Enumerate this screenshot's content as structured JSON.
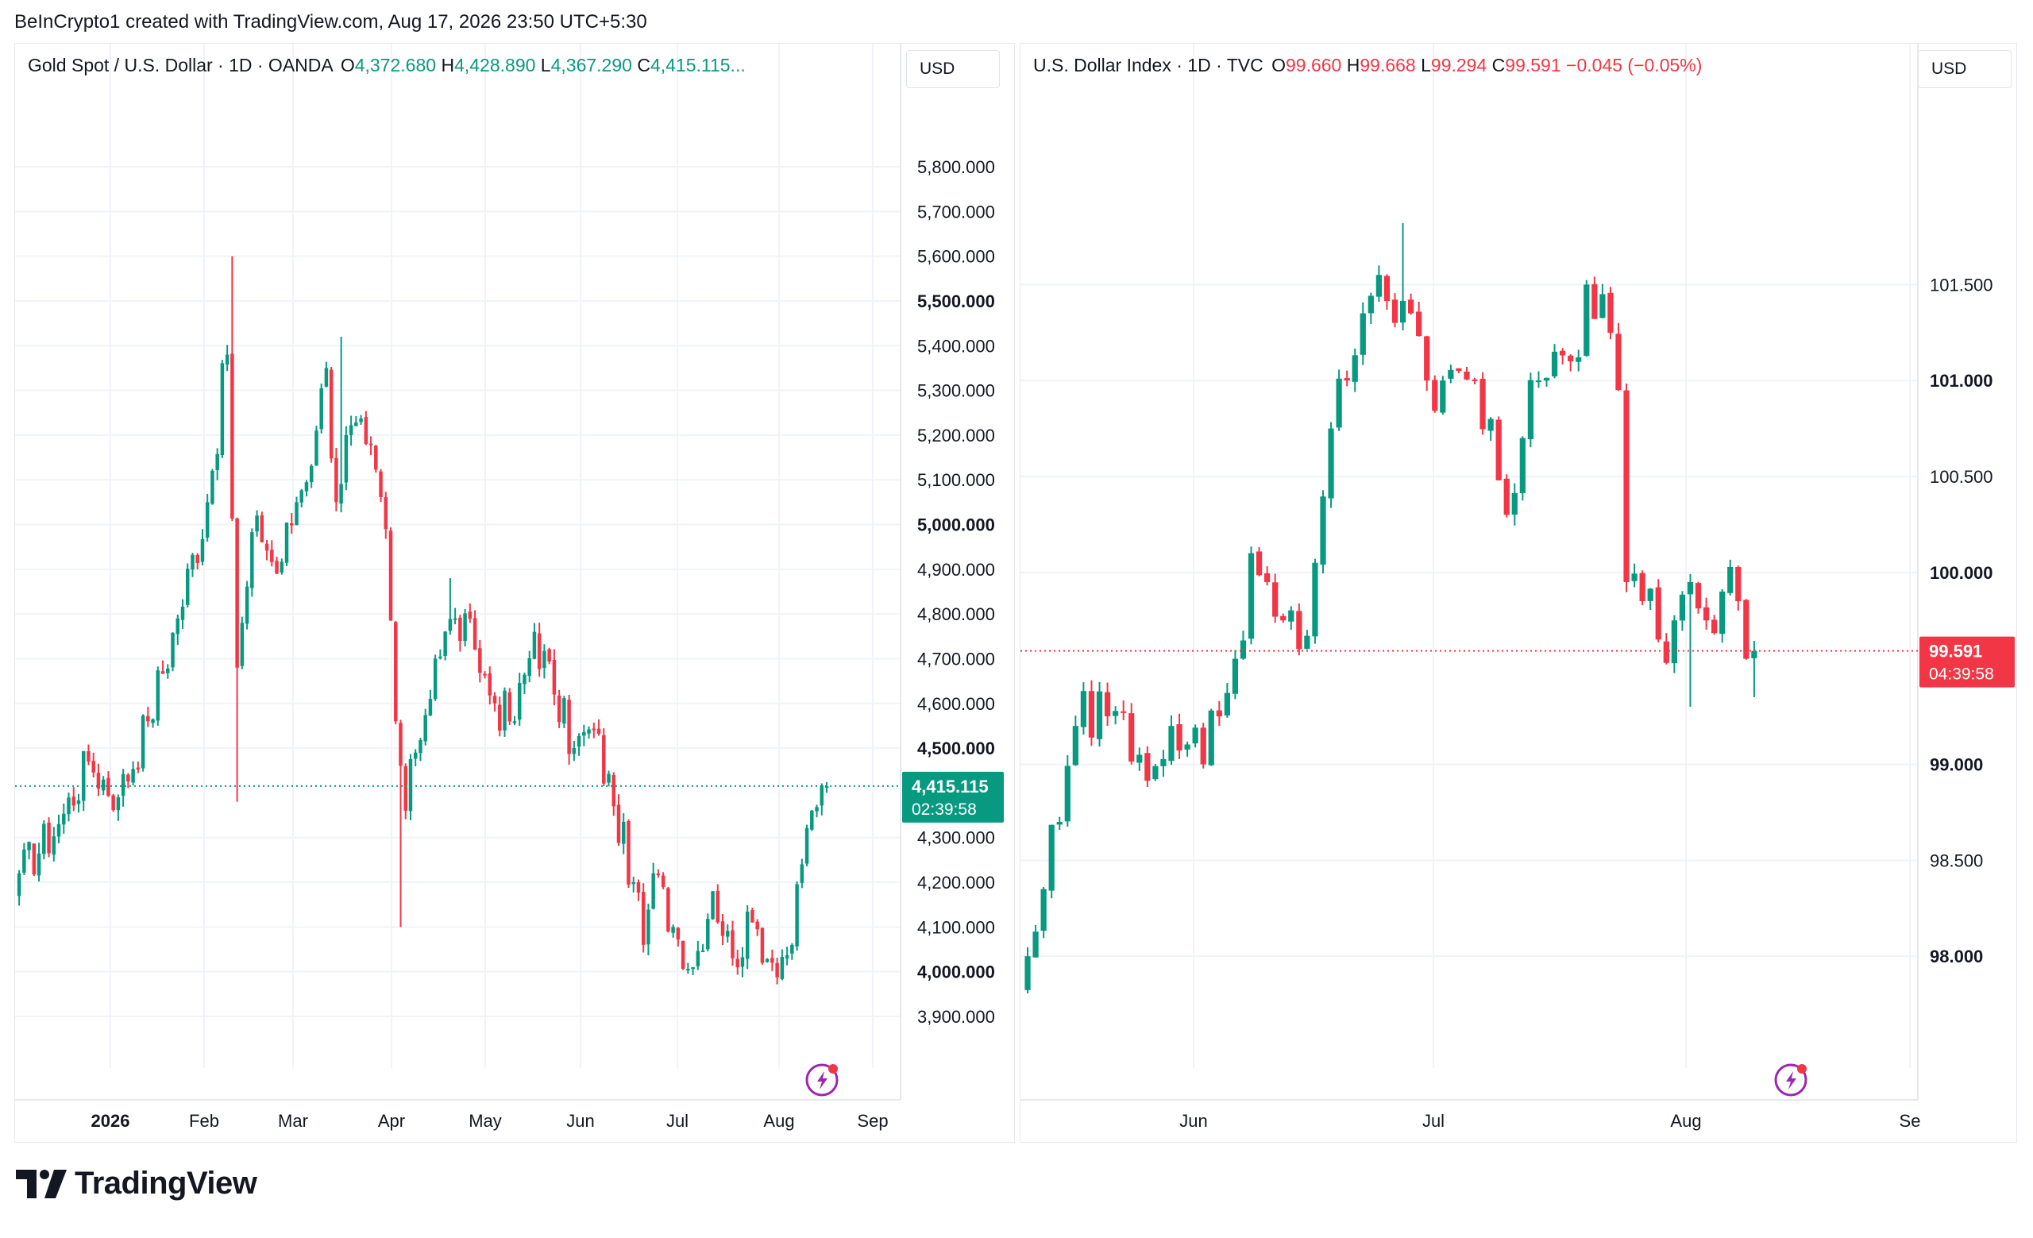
{
  "header": {
    "credit": "BeInCrypto1 created with TradingView.com, Aug 17, 2026 23:50 UTC+5:30"
  },
  "footer": {
    "brand": "TradingView",
    "brand_icon": "tradingview-logo-icon"
  },
  "colors": {
    "up": "#089981",
    "down": "#f23645",
    "grid": "#f0f3fa",
    "text": "#131722"
  },
  "left": {
    "symbol": "Gold Spot / U.S. Dollar · 1D · OANDA",
    "o_label": "O",
    "o": "4,372.680",
    "h_label": "H",
    "h": "4,428.890",
    "l_label": "L",
    "l": "4,367.290",
    "c_label": "C",
    "c": "4,415.115...",
    "currency": "USD",
    "price_tag": "4,415.115",
    "countdown": "02:39:58",
    "quick_icon": "lightning-icon"
  },
  "right": {
    "symbol": "U.S. Dollar Index · 1D · TVC",
    "o_label": "O",
    "o": "99.660",
    "h_label": "H",
    "h": "99.668",
    "l_label": "L",
    "l": "99.294",
    "c_label": "C",
    "c": "99.591",
    "change": "−0.045 (−0.05%)",
    "currency": "USD",
    "price_tag": "99.591",
    "countdown": "04:39:58",
    "quick_icon": "lightning-icon"
  },
  "chart_data": [
    {
      "type": "candlestick",
      "title": "Gold Spot / U.S. Dollar · 1D · OANDA",
      "ylim": [
        3820,
        5880
      ],
      "ticks": [
        {
          "v": 5800,
          "t": "5,800.000",
          "bold": false
        },
        {
          "v": 5700,
          "t": "5,700.000",
          "bold": false
        },
        {
          "v": 5600,
          "t": "5,600.000",
          "bold": false
        },
        {
          "v": 5500,
          "t": "5,500.000",
          "bold": true
        },
        {
          "v": 5400,
          "t": "5,400.000",
          "bold": false
        },
        {
          "v": 5300,
          "t": "5,300.000",
          "bold": false
        },
        {
          "v": 5200,
          "t": "5,200.000",
          "bold": false
        },
        {
          "v": 5100,
          "t": "5,100.000",
          "bold": false
        },
        {
          "v": 5000,
          "t": "5,000.000",
          "bold": true
        },
        {
          "v": 4900,
          "t": "4,900.000",
          "bold": false
        },
        {
          "v": 4800,
          "t": "4,800.000",
          "bold": false
        },
        {
          "v": 4700,
          "t": "4,700.000",
          "bold": false
        },
        {
          "v": 4600,
          "t": "4,600.000",
          "bold": false
        },
        {
          "v": 4500,
          "t": "4,500.000",
          "bold": true
        },
        {
          "v": 4300,
          "t": "4,300.000",
          "bold": false
        },
        {
          "v": 4200,
          "t": "4,200.000",
          "bold": false
        },
        {
          "v": 4100,
          "t": "4,100.000",
          "bold": false
        },
        {
          "v": 4000,
          "t": "4,000.000",
          "bold": true
        },
        {
          "v": 3900,
          "t": "3,900.000",
          "bold": false
        }
      ],
      "xticks": [
        {
          "i": 0,
          "t": "2026",
          "bold": true
        },
        {
          "i": 0,
          "t": "Feb",
          "bold": false
        },
        {
          "i": 0,
          "t": "Mar",
          "bold": false
        },
        {
          "i": 0,
          "t": "Apr",
          "bold": false
        },
        {
          "i": 0,
          "t": "May",
          "bold": false
        },
        {
          "i": 0,
          "t": "Jun",
          "bold": false
        },
        {
          "i": 0,
          "t": "Jul",
          "bold": false
        },
        {
          "i": 0,
          "t": "Aug",
          "bold": false
        },
        {
          "i": 0,
          "t": "Sep",
          "bold": false
        }
      ],
      "last": 4415.115,
      "waypoints": [
        [
          0,
          4220
        ],
        [
          8,
          4330
        ],
        [
          14,
          4470
        ],
        [
          20,
          4390
        ],
        [
          26,
          4560
        ],
        [
          32,
          4790
        ],
        [
          38,
          5050
        ],
        [
          42,
          5380
        ],
        [
          44,
          4680
        ],
        [
          48,
          5020
        ],
        [
          52,
          4890
        ],
        [
          56,
          5050
        ],
        [
          60,
          5210
        ],
        [
          62,
          5350
        ],
        [
          64,
          5050
        ],
        [
          66,
          5200
        ],
        [
          70,
          5180
        ],
        [
          74,
          4990
        ],
        [
          76,
          4560
        ],
        [
          78,
          4360
        ],
        [
          80,
          4490
        ],
        [
          84,
          4700
        ],
        [
          88,
          4790
        ],
        [
          92,
          4720
        ],
        [
          96,
          4600
        ],
        [
          100,
          4560
        ],
        [
          104,
          4760
        ],
        [
          108,
          4620
        ],
        [
          112,
          4500
        ],
        [
          116,
          4540
        ],
        [
          120,
          4370
        ],
        [
          124,
          4200
        ],
        [
          126,
          4060
        ],
        [
          128,
          4220
        ],
        [
          132,
          4100
        ],
        [
          136,
          4010
        ],
        [
          140,
          4180
        ],
        [
          144,
          4030
        ],
        [
          148,
          4110
        ],
        [
          152,
          4020
        ],
        [
          156,
          4060
        ],
        [
          158,
          4240
        ],
        [
          160,
          4360
        ],
        [
          163,
          4415.115
        ]
      ],
      "spikes": [
        {
          "i": 43,
          "hi": 5600
        },
        {
          "i": 44,
          "lo": 4380
        },
        {
          "i": 65,
          "hi": 5420
        },
        {
          "i": 77,
          "lo": 4100
        },
        {
          "i": 87,
          "hi": 4880
        }
      ]
    },
    {
      "type": "candlestick",
      "title": "U.S. Dollar Index · 1D · TVC",
      "ylim": [
        97.5,
        102.3
      ],
      "ticks": [
        {
          "v": 101.5,
          "t": "101.500",
          "bold": false
        },
        {
          "v": 101.0,
          "t": "101.000",
          "bold": true
        },
        {
          "v": 100.5,
          "t": "100.500",
          "bold": false
        },
        {
          "v": 100.0,
          "t": "100.000",
          "bold": true
        },
        {
          "v": 99.0,
          "t": "99.000",
          "bold": true
        },
        {
          "v": 98.5,
          "t": "98.500",
          "bold": false
        },
        {
          "v": 98.0,
          "t": "98.000",
          "bold": true
        }
      ],
      "xticks": [
        {
          "i": 0,
          "t": "Jun",
          "bold": false
        },
        {
          "i": 0,
          "t": "Jul",
          "bold": false
        },
        {
          "i": 0,
          "t": "Aug",
          "bold": false
        },
        {
          "i": 0,
          "t": "Se",
          "bold": false
        }
      ],
      "last": 99.591,
      "waypoints": [
        [
          0,
          98.0
        ],
        [
          2,
          98.35
        ],
        [
          4,
          98.7
        ],
        [
          6,
          99.2
        ],
        [
          10,
          99.25
        ],
        [
          14,
          99.05
        ],
        [
          18,
          99.2
        ],
        [
          22,
          99.0
        ],
        [
          24,
          99.25
        ],
        [
          26,
          99.55
        ],
        [
          28,
          100.1
        ],
        [
          30,
          99.95
        ],
        [
          32,
          99.75
        ],
        [
          34,
          99.6
        ],
        [
          36,
          100.05
        ],
        [
          38,
          100.75
        ],
        [
          40,
          101.0
        ],
        [
          42,
          101.35
        ],
        [
          44,
          101.55
        ],
        [
          46,
          101.3
        ],
        [
          48,
          101.35
        ],
        [
          50,
          101.0
        ],
        [
          52,
          101.0
        ],
        [
          54,
          101.05
        ],
        [
          56,
          101.0
        ],
        [
          58,
          100.8
        ],
        [
          60,
          100.3
        ],
        [
          62,
          100.7
        ],
        [
          64,
          101.0
        ],
        [
          66,
          101.15
        ],
        [
          68,
          101.1
        ],
        [
          70,
          101.5
        ],
        [
          72,
          101.45
        ],
        [
          74,
          100.95
        ],
        [
          75,
          99.95
        ],
        [
          77,
          99.85
        ],
        [
          79,
          99.65
        ],
        [
          81,
          99.75
        ],
        [
          83,
          99.95
        ],
        [
          85,
          99.75
        ],
        [
          87,
          99.9
        ],
        [
          89,
          99.85
        ],
        [
          90,
          99.55
        ],
        [
          91,
          99.591
        ]
      ],
      "spikes": [
        {
          "i": 47,
          "hi": 101.82
        },
        {
          "i": 83,
          "lo": 99.3
        },
        {
          "i": 91,
          "lo": 99.35
        }
      ]
    }
  ]
}
